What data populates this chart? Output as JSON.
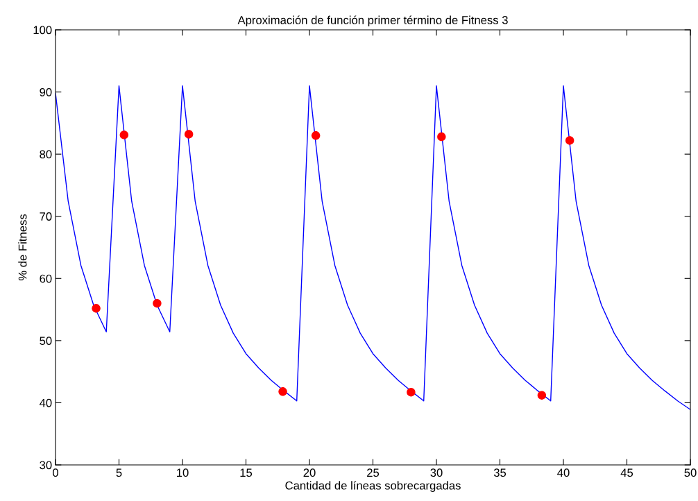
{
  "chart_data": {
    "type": "line",
    "title": "Aproximación de función primer término de Fitness 3",
    "xlabel": "Cantidad de líneas sobrecargadas",
    "ylabel": "% de Fitness",
    "xlim": [
      0,
      50
    ],
    "xticks": [
      0,
      5,
      10,
      15,
      20,
      25,
      30,
      35,
      40,
      45,
      50
    ],
    "ylim": [
      30,
      100
    ],
    "yticks": [
      30,
      40,
      50,
      60,
      70,
      80,
      90,
      100
    ],
    "grid": false,
    "legend": false,
    "series": [
      {
        "color": "#0000ff",
        "marker": "none",
        "line_style": "solid",
        "x": [
          0,
          1,
          2,
          3,
          4,
          5,
          6,
          7,
          8,
          9,
          10,
          11,
          12,
          13,
          14,
          15,
          16,
          17,
          18,
          19,
          20,
          21,
          22,
          23,
          24,
          25,
          26,
          27,
          28,
          29,
          30,
          31,
          32,
          33,
          34,
          35,
          36,
          37,
          38,
          39,
          40,
          41,
          42,
          43,
          44,
          45,
          46,
          47,
          48,
          49,
          50
        ],
        "values": [
          89.8,
          72.4,
          62.1,
          55.7,
          51.4,
          91,
          72.4,
          62.1,
          55.7,
          51.4,
          91,
          72.4,
          62.1,
          55.7,
          51.2,
          47.9,
          45.6,
          43.6,
          41.9,
          40.3,
          91,
          72.4,
          62.1,
          55.7,
          51.2,
          47.9,
          45.6,
          43.6,
          41.9,
          40.3,
          91,
          72.4,
          62.1,
          55.7,
          51.2,
          47.9,
          45.6,
          43.6,
          41.9,
          40.3,
          91,
          72.4,
          62.1,
          55.7,
          51.2,
          47.9,
          45.6,
          43.6,
          41.9,
          40.3,
          38.9
        ]
      },
      {
        "type": "scatter",
        "color": "#ff0000",
        "marker": "circle",
        "x": [
          3.2,
          5.4,
          8,
          10.5,
          17.9,
          20.5,
          28,
          30.4,
          38.3,
          40.5
        ],
        "values": [
          55.2,
          83.1,
          56,
          83.2,
          41.8,
          83,
          41.7,
          82.8,
          41.2,
          82.2
        ]
      }
    ]
  }
}
